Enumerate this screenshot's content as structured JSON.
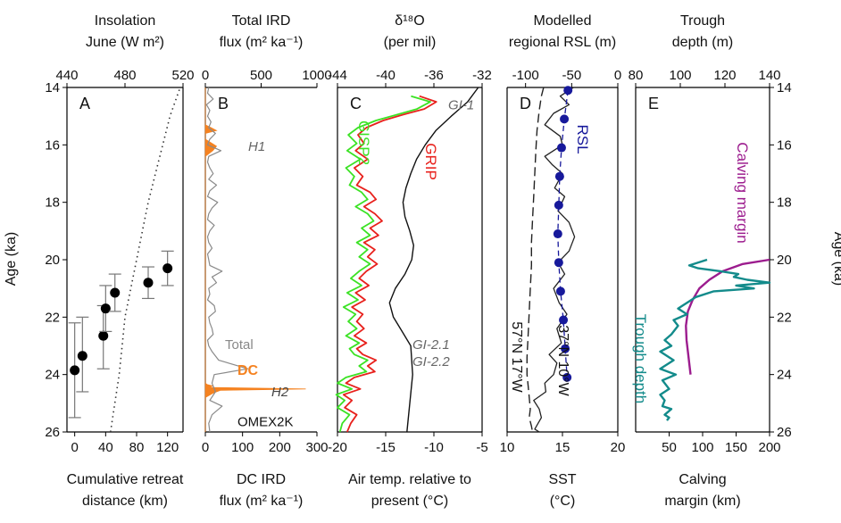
{
  "figure": {
    "left_axis_label": "Age (ka)",
    "right_axis_label": "Age (ka)",
    "age_ticks": [
      "14",
      "16",
      "18",
      "20",
      "22",
      "24",
      "26"
    ]
  },
  "chart_data": [
    {
      "panel": "A",
      "type": "scatter",
      "ylim": [
        26,
        14
      ],
      "top_axis": {
        "label_line1": "Insolation",
        "label_line2": "June (W m²)",
        "range": [
          440,
          520
        ],
        "ticks": [
          "440",
          "480",
          "520"
        ]
      },
      "bottom_axis": {
        "label_line1": "Cumulative retreat",
        "label_line2": "distance (km)",
        "range": [
          -10,
          140
        ],
        "ticks": [
          "0",
          "40",
          "80",
          "120"
        ]
      },
      "insolation_curve": {
        "x": [
          470,
          473,
          476,
          478,
          480,
          484,
          488,
          492,
          496,
          501,
          506,
          511,
          518
        ],
        "y": [
          26,
          25,
          24,
          23,
          22,
          21,
          20,
          19,
          18,
          17,
          16,
          15,
          14
        ]
      },
      "points": [
        {
          "x": 0,
          "y": 23.85,
          "err_lo": 22.2,
          "err_hi": 25.5
        },
        {
          "x": 10,
          "y": 23.35,
          "err_lo": 22.0,
          "err_hi": 24.6
        },
        {
          "x": 37,
          "y": 22.65,
          "err_lo": 21.6,
          "err_hi": 23.8
        },
        {
          "x": 40,
          "y": 21.7,
          "err_lo": 20.9,
          "err_hi": 22.5
        },
        {
          "x": 52,
          "y": 21.15,
          "err_lo": 20.5,
          "err_hi": 21.8
        },
        {
          "x": 95,
          "y": 20.8,
          "err_lo": 20.25,
          "err_hi": 21.35
        },
        {
          "x": 120,
          "y": 20.3,
          "err_lo": 19.7,
          "err_hi": 20.9
        }
      ]
    },
    {
      "panel": "B",
      "type": "area",
      "ylim": [
        26,
        14
      ],
      "top_axis": {
        "label_line1": "Total IRD",
        "label_line2": "flux (m² ka⁻¹)",
        "range": [
          0,
          1000
        ],
        "ticks": [
          "0",
          "500",
          "1000"
        ]
      },
      "bottom_axis": {
        "label_line1": "DC IRD",
        "label_line2": "flux (m² ka⁻¹)",
        "range": [
          0,
          300
        ],
        "ticks": [
          "0",
          "100",
          "200",
          "300"
        ]
      },
      "annotations": [
        "H1",
        "Total",
        "DC",
        "H2",
        "OMEX2K"
      ],
      "series": [
        {
          "name": "Total",
          "x": [
            30,
            20,
            70,
            10,
            40,
            20,
            50,
            30,
            90,
            40,
            20,
            140,
            30,
            20,
            40,
            70,
            30,
            100,
            40,
            20,
            110,
            60,
            30,
            20,
            80,
            40,
            20,
            30,
            60,
            20,
            30,
            40,
            150,
            60,
            100,
            30,
            40,
            20,
            80,
            90,
            30,
            40,
            60,
            70,
            20,
            30,
            60,
            120,
            380,
            80,
            60,
            90,
            40,
            150,
            60,
            30,
            40
          ],
          "y": [
            14,
            14.2,
            14.4,
            14.6,
            14.8,
            15,
            15.2,
            15.4,
            15.6,
            15.8,
            16,
            16.2,
            16.4,
            16.6,
            16.8,
            17,
            17.2,
            17.4,
            17.6,
            17.8,
            18,
            18.2,
            18.4,
            18.6,
            18.8,
            19,
            19.2,
            19.4,
            19.6,
            19.8,
            20,
            20.2,
            20.4,
            20.6,
            20.8,
            21,
            21.2,
            21.4,
            21.6,
            21.8,
            22,
            22.2,
            22.4,
            22.6,
            22.8,
            23,
            23.2,
            23.5,
            23.8,
            24,
            24.3,
            24.6,
            24.9,
            25.1,
            25.4,
            25.7,
            26
          ]
        },
        {
          "name": "DC",
          "x": [
            0,
            0,
            0,
            0,
            0,
            15,
            30,
            0,
            0,
            30,
            20,
            0,
            0,
            0,
            0,
            0,
            0,
            0,
            0,
            0,
            0,
            0,
            0,
            0,
            0,
            0,
            0,
            0,
            0,
            0,
            0,
            5,
            20,
            10,
            270,
            40,
            20,
            0,
            0,
            0
          ],
          "y": [
            14,
            14.6,
            15,
            15.2,
            15.3,
            15.4,
            15.5,
            15.6,
            15.8,
            16.05,
            16.2,
            16.4,
            17,
            18,
            19,
            20,
            21,
            22,
            22.5,
            23,
            23.5,
            23.7,
            23.8,
            23.9,
            24,
            24.05,
            24.1,
            24.15,
            24.2,
            24.25,
            24.3,
            24.35,
            24.4,
            24.45,
            24.5,
            24.55,
            24.65,
            24.8,
            25,
            26
          ]
        }
      ]
    },
    {
      "panel": "C",
      "type": "line",
      "ylim": [
        26,
        14
      ],
      "top_axis": {
        "label_line1": "δ¹⁸O",
        "label_line2": "(per mil)",
        "range": [
          -44,
          -32
        ],
        "ticks": [
          "-44",
          "-40",
          "-36",
          "-32"
        ]
      },
      "bottom_axis": {
        "label_line1": "Air temp. relative to",
        "label_line2": "present (°C)",
        "range": [
          -20,
          -5
        ],
        "ticks": [
          "-20",
          "-15",
          "-10",
          "-5"
        ]
      },
      "annotations": [
        "GI-1",
        "GI-2.1",
        "GI-2.2"
      ],
      "series": [
        {
          "name": "GRIP",
          "x": [
            -37.2,
            -35.8,
            -36.8,
            -38.6,
            -40.2,
            -41.6,
            -42.3,
            -41.8,
            -42.5,
            -41.5,
            -42.6,
            -41.9,
            -42.4,
            -41.3,
            -40.8,
            -41.8,
            -40.9,
            -40.3,
            -41.3,
            -40.6,
            -41.8,
            -40.9,
            -41.5,
            -40.7,
            -41.6,
            -42.2,
            -41.4,
            -42.5,
            -41.7,
            -42.8,
            -41.9,
            -42.4,
            -41.8,
            -42.6,
            -41.6,
            -42.4,
            -41.9,
            -40.8,
            -41.5,
            -40.9,
            -42.6,
            -43.3,
            -42.1,
            -43.5,
            -42.8,
            -43.4,
            -42.4,
            -42.9,
            -43.2
          ],
          "y": [
            14.3,
            14.5,
            14.75,
            14.95,
            15.15,
            15.4,
            15.65,
            15.95,
            16.2,
            16.5,
            16.8,
            17.1,
            17.4,
            17.65,
            17.9,
            18.15,
            18.4,
            18.65,
            18.9,
            19.15,
            19.4,
            19.65,
            19.9,
            20.15,
            20.4,
            20.65,
            20.9,
            21.15,
            21.4,
            21.65,
            21.9,
            22.15,
            22.4,
            22.65,
            22.9,
            23.1,
            23.3,
            23.5,
            23.7,
            23.9,
            24.1,
            24.3,
            24.5,
            24.7,
            24.9,
            25.15,
            25.4,
            25.7,
            26
          ]
        },
        {
          "name": "GISP2",
          "x": [
            -37.9,
            -36.3,
            -37.4,
            -39.1,
            -40.8,
            -42.3,
            -43.1,
            -42.4,
            -43.2,
            -42.1,
            -43.3,
            -42.6,
            -43.0,
            -42.0,
            -41.5,
            -42.5,
            -41.5,
            -41.0,
            -42.0,
            -41.3,
            -42.4,
            -41.5,
            -42.2,
            -41.3,
            -42.2,
            -42.9,
            -42.0,
            -43.2,
            -42.3,
            -43.5,
            -42.5,
            -43.1,
            -42.4,
            -43.3,
            -42.2,
            -43.0,
            -42.6,
            -41.5,
            -42.2,
            -41.6,
            -43.3,
            -44.0,
            -42.8,
            -44.1,
            -43.4,
            -44.0,
            -43.0,
            -43.6,
            -43.8
          ],
          "y": [
            14.3,
            14.5,
            14.75,
            14.95,
            15.15,
            15.4,
            15.65,
            15.95,
            16.2,
            16.5,
            16.8,
            17.1,
            17.4,
            17.65,
            17.9,
            18.15,
            18.4,
            18.65,
            18.9,
            19.15,
            19.4,
            19.65,
            19.9,
            20.15,
            20.4,
            20.65,
            20.9,
            21.15,
            21.4,
            21.65,
            21.9,
            22.15,
            22.4,
            22.65,
            22.9,
            23.1,
            23.3,
            23.5,
            23.7,
            23.9,
            24.1,
            24.3,
            24.5,
            24.7,
            24.9,
            25.15,
            25.4,
            25.7,
            26
          ]
        },
        {
          "name": "air-temperature",
          "x": [
            -5.4,
            -6.5,
            -8.2,
            -9.8,
            -10.9,
            -11.8,
            -12.4,
            -12.9,
            -13.2,
            -13.0,
            -12.5,
            -12.1,
            -12.3,
            -13.0,
            -14.0,
            -14.6,
            -14.2,
            -13.3,
            -12.4,
            -12.2,
            -12.8
          ],
          "y": [
            14,
            14.5,
            15,
            15.5,
            16,
            16.5,
            17,
            17.5,
            18,
            18.5,
            19,
            19.5,
            20,
            20.5,
            21,
            21.5,
            22,
            22.5,
            23,
            24,
            26
          ]
        }
      ]
    },
    {
      "panel": "D",
      "type": "line",
      "ylim": [
        26,
        14
      ],
      "top_axis": {
        "label_line1": "Modelled",
        "label_line2": "regional RSL (m)",
        "range": [
          -120,
          0
        ],
        "ticks": [
          "-100",
          "-50",
          "0"
        ]
      },
      "bottom_axis": {
        "label_line1": "SST",
        "label_line2": "(°C)",
        "range": [
          10,
          20
        ],
        "ticks": [
          "10",
          "15",
          "20"
        ]
      },
      "annotations": [
        "RSL",
        "57°N 17°W",
        "37°N 10°W"
      ],
      "series": [
        {
          "name": "RSL",
          "x": [
            -54,
            -58,
            -61,
            -63,
            -64,
            -65,
            -64,
            -62,
            -59,
            -57,
            -55
          ],
          "y": [
            14.1,
            15.1,
            16.1,
            17.1,
            18.1,
            19.1,
            20.1,
            21.1,
            22.1,
            23.1,
            24.1
          ]
        },
        {
          "name": "57°N 17°W",
          "x": [
            13.3,
            13.1,
            12.9,
            12.7,
            12.6,
            12.5,
            12.4,
            12.3,
            12.2,
            12.2,
            12.1,
            12.0,
            11.9,
            11.8,
            11.8,
            11.9,
            12.0,
            12.1,
            12.0,
            12.2,
            12.3
          ],
          "y": [
            14,
            14.3,
            14.8,
            15.5,
            16.2,
            17,
            17.8,
            18.6,
            19.4,
            20.2,
            21,
            21.8,
            22.6,
            23.4,
            24,
            24.4,
            24.8,
            25.2,
            25.5,
            25.8,
            26
          ]
        },
        {
          "name": "37°N 10°W",
          "x": [
            16.0,
            14.8,
            15.6,
            14.2,
            13.4,
            14.8,
            15.0,
            13.4,
            14.1,
            15.0,
            14.3,
            15.2,
            14.6,
            15.6,
            16.1,
            15.6,
            14.6,
            15.2,
            14.2,
            14.7,
            15.4,
            14.5,
            14.9,
            13.8,
            14.5,
            14.2,
            13.4,
            13.5,
            12.4,
            12.9,
            13.1,
            12.8,
            12.5,
            12.9
          ],
          "y": [
            14,
            14.3,
            14.6,
            14.9,
            15.3,
            15.7,
            16.0,
            16.4,
            16.7,
            17.0,
            17.5,
            17.8,
            18.3,
            18.7,
            19.2,
            19.7,
            20.1,
            20.5,
            21.0,
            21.5,
            21.9,
            22.4,
            22.9,
            23.3,
            23.6,
            24.0,
            24.3,
            24.6,
            24.9,
            25.2,
            25.5,
            25.7,
            25.9,
            26
          ]
        }
      ]
    },
    {
      "panel": "E",
      "type": "line",
      "ylim": [
        26,
        14
      ],
      "top_axis": {
        "label_line1": "Trough",
        "label_line2": "depth (m)",
        "range": [
          80,
          140
        ],
        "ticks": [
          "80",
          "100",
          "120",
          "140"
        ]
      },
      "bottom_axis": {
        "label_line1": "Calving",
        "label_line2": "margin (km)",
        "range": [
          0,
          200
        ],
        "ticks": [
          "50",
          "100",
          "150",
          "200"
        ]
      },
      "annotations": [
        "Calving margin",
        "Trough depth"
      ],
      "series": [
        {
          "name": "Calving margin",
          "x": [
            200,
            160,
            130,
            110,
            95,
            85,
            78,
            75,
            76,
            78,
            80,
            82
          ],
          "y": [
            20.0,
            20.15,
            20.4,
            20.7,
            21.0,
            21.4,
            21.8,
            22.3,
            22.8,
            23.2,
            23.6,
            24.0
          ]
        },
        {
          "name": "Trough depth",
          "x": [
            112,
            104,
            108,
            118,
            126,
            124,
            130,
            140,
            125,
            133,
            115,
            107,
            103,
            99,
            103,
            97,
            99,
            96,
            93,
            96,
            91,
            97,
            91,
            98,
            92,
            95,
            91,
            93,
            92,
            96,
            93,
            95,
            94
          ],
          "y": [
            20.0,
            20.2,
            20.3,
            20.4,
            20.5,
            20.6,
            20.7,
            20.8,
            20.9,
            21.0,
            21.1,
            21.3,
            21.5,
            21.7,
            21.9,
            22.1,
            22.3,
            22.6,
            22.8,
            23.0,
            23.2,
            23.5,
            23.8,
            24.0,
            24.2,
            24.5,
            24.7,
            24.9,
            25.1,
            25.2,
            25.4,
            25.5,
            25.6
          ]
        }
      ]
    }
  ]
}
